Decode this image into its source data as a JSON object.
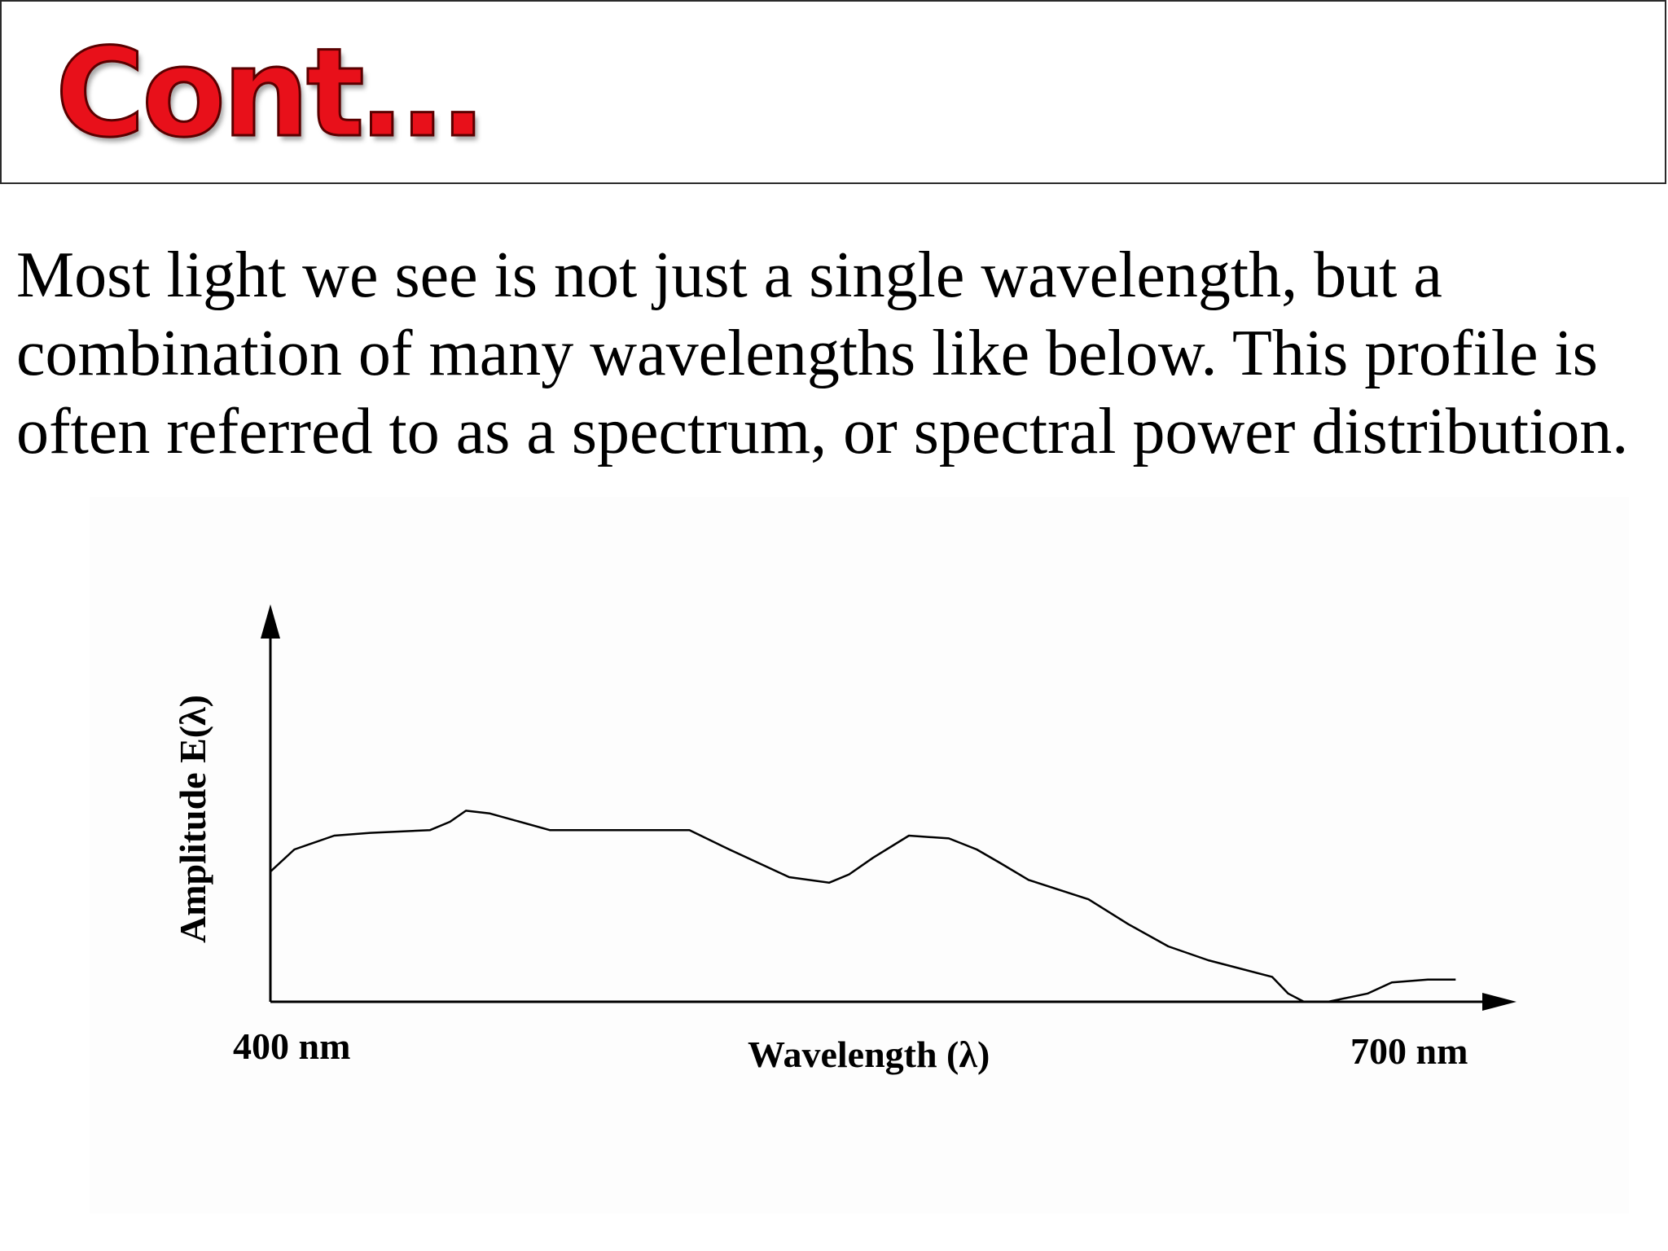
{
  "slide": {
    "title": "Cont…",
    "body_lines": [
      "Most light we see is not just a single wavelength, but a",
      "combination of many wavelengths like below. This profile is",
      "often referred to as a spectrum, or spectral power distribution."
    ]
  },
  "chart_data": {
    "type": "line",
    "title": "",
    "xlabel": "Wavelength (λ)",
    "ylabel": "Amplitude E(λ)",
    "x_start_label": "400 nm",
    "x_end_label": "700 nm",
    "xlim": [
      400,
      700
    ],
    "ylim": [
      0,
      1
    ],
    "grid": false,
    "legend": "none",
    "colors": {
      "line": "#000000",
      "axis": "#000000",
      "title": "#e8101a"
    },
    "series": [
      {
        "x": [
          400,
          406,
          416,
          425,
          440,
          445,
          449,
          455,
          470,
          480,
          495,
          505,
          515,
          530,
          540,
          545,
          551,
          560,
          570,
          577,
          583,
          590,
          605,
          615,
          625,
          635,
          651,
          655,
          659,
          665,
          675,
          681,
          690,
          697
        ],
        "y": [
          0.47,
          0.55,
          0.6,
          0.61,
          0.62,
          0.65,
          0.69,
          0.68,
          0.62,
          0.62,
          0.62,
          0.62,
          0.55,
          0.45,
          0.43,
          0.46,
          0.52,
          0.6,
          0.59,
          0.55,
          0.5,
          0.44,
          0.37,
          0.28,
          0.2,
          0.15,
          0.09,
          0.03,
          0.0,
          0.0,
          0.03,
          0.07,
          0.08,
          0.08
        ]
      }
    ]
  }
}
